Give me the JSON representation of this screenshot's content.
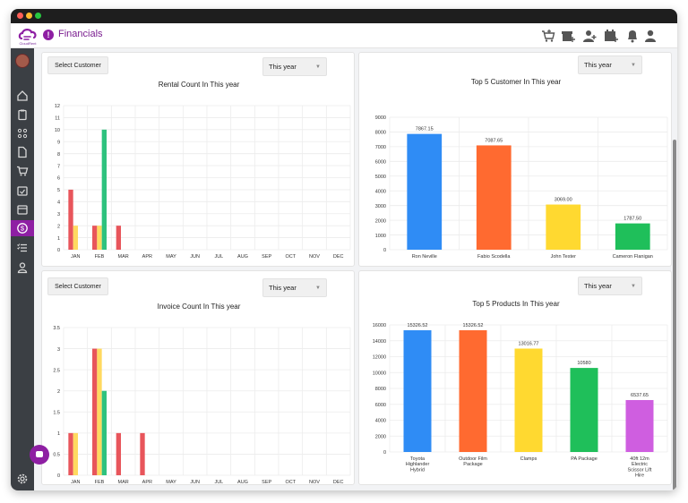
{
  "app": {
    "title": "Financials",
    "logo_text": "CloudRent",
    "logo_icon": "cloudrent-logo",
    "accent": "#8e1fa3"
  },
  "topbar": {
    "icons": [
      "cart-plus-icon",
      "package-plus-icon",
      "user-plus-icon",
      "calendar-plus-icon",
      "bell-icon",
      "user-icon"
    ]
  },
  "sidebar": {
    "items": [
      "home-icon",
      "clipboard-icon",
      "network-icon",
      "document-icon",
      "cart-icon",
      "calendar-check-icon",
      "calendar-icon",
      "dollar-icon",
      "list-check-icon",
      "user-icon"
    ],
    "active_index": 7,
    "settings_icon": "gear-icon"
  },
  "panels": {
    "rental": {
      "customer_button": "Select Customer",
      "period": "This year",
      "title": "Rental Count In This year"
    },
    "customers": {
      "period": "This year",
      "title": "Top 5 Customer In This year"
    },
    "invoice": {
      "customer_button": "Select Customer",
      "period": "This year",
      "title": "Invoice Count In This year"
    },
    "products": {
      "period": "This year",
      "title": "Top 5 Products In This year"
    }
  },
  "chart_data": [
    {
      "type": "bar",
      "title": "Rental Count In This year",
      "categories": [
        "JAN",
        "FEB",
        "MAR",
        "APR",
        "MAY",
        "JUN",
        "JUL",
        "AUG",
        "SEP",
        "OCT",
        "NOV",
        "DEC"
      ],
      "series": [
        {
          "color": "#e8555b",
          "values": [
            5,
            2,
            2,
            0,
            0,
            0,
            0,
            0,
            0,
            0,
            0,
            0
          ]
        },
        {
          "color": "#ffd960",
          "values": [
            2,
            2,
            0,
            0,
            0,
            0,
            0,
            0,
            0,
            0,
            0,
            0
          ]
        },
        {
          "color": "#2ec27e",
          "values": [
            0,
            10,
            0,
            0,
            0,
            0,
            0,
            0,
            0,
            0,
            0,
            0
          ]
        }
      ],
      "ylim": [
        0,
        12
      ],
      "yticks": [
        0,
        1,
        2,
        3,
        4,
        5,
        6,
        7,
        8,
        9,
        10,
        11,
        12
      ],
      "grid": true
    },
    {
      "type": "bar",
      "title": "Top 5 Customer In This year",
      "categories": [
        "Ron Neville",
        "Fabio Scodella",
        "John Tester",
        "Cameron Flanigan"
      ],
      "values": [
        7867.15,
        7087.65,
        3069.0,
        1787.5
      ],
      "data_labels": [
        "7867.15",
        "7087.65",
        "3069.00",
        "1787.50"
      ],
      "colors": [
        "#2f8cf5",
        "#ff6a30",
        "#ffd930",
        "#1fbf5a"
      ],
      "ylim": [
        0,
        9000
      ],
      "yticks": [
        0,
        1000,
        2000,
        3000,
        4000,
        5000,
        6000,
        7000,
        8000,
        9000
      ],
      "grid": true
    },
    {
      "type": "bar",
      "title": "Invoice Count In This year",
      "categories": [
        "JAN",
        "FEB",
        "MAR",
        "APR",
        "MAY",
        "JUN",
        "JUL",
        "AUG",
        "SEP",
        "OCT",
        "NOV",
        "DEC"
      ],
      "series": [
        {
          "color": "#e8555b",
          "values": [
            1,
            3,
            1,
            1,
            0,
            0,
            0,
            0,
            0,
            0,
            0,
            0
          ]
        },
        {
          "color": "#ffd960",
          "values": [
            1,
            3,
            0,
            0,
            0,
            0,
            0,
            0,
            0,
            0,
            0,
            0
          ]
        },
        {
          "color": "#2ec27e",
          "values": [
            0,
            2,
            0,
            0,
            0,
            0,
            0,
            0,
            0,
            0,
            0,
            0
          ]
        }
      ],
      "ylim": [
        0,
        3.5
      ],
      "yticks": [
        0,
        0.5,
        1,
        1.5,
        2,
        2.5,
        3,
        3.5
      ],
      "ytick_labels": [
        "0",
        "0.5",
        "1",
        "1.5",
        "2",
        "2.5",
        "3",
        "3.5"
      ],
      "grid": true
    },
    {
      "type": "bar",
      "title": "Top 5 Products In This year",
      "categories": [
        [
          "Toyota",
          "Highlander",
          "Hybrid"
        ],
        [
          "Outdoor Film",
          "Package"
        ],
        [
          "Clamps"
        ],
        [
          "PA Package"
        ],
        [
          "40ft 12m",
          "Electric",
          "Scissor Lift",
          "Hire"
        ]
      ],
      "values": [
        15326.52,
        15326.52,
        13016.77,
        10580,
        6537.65
      ],
      "data_labels": [
        "15326.52",
        "15326.52",
        "13016.77",
        "10580",
        "6537.65"
      ],
      "colors": [
        "#2f8cf5",
        "#ff6a30",
        "#ffd930",
        "#1fbf5a",
        "#cf5ee0"
      ],
      "ylim": [
        0,
        16000
      ],
      "yticks": [
        0,
        2000,
        4000,
        6000,
        8000,
        10000,
        12000,
        14000,
        16000
      ],
      "grid": true
    }
  ]
}
